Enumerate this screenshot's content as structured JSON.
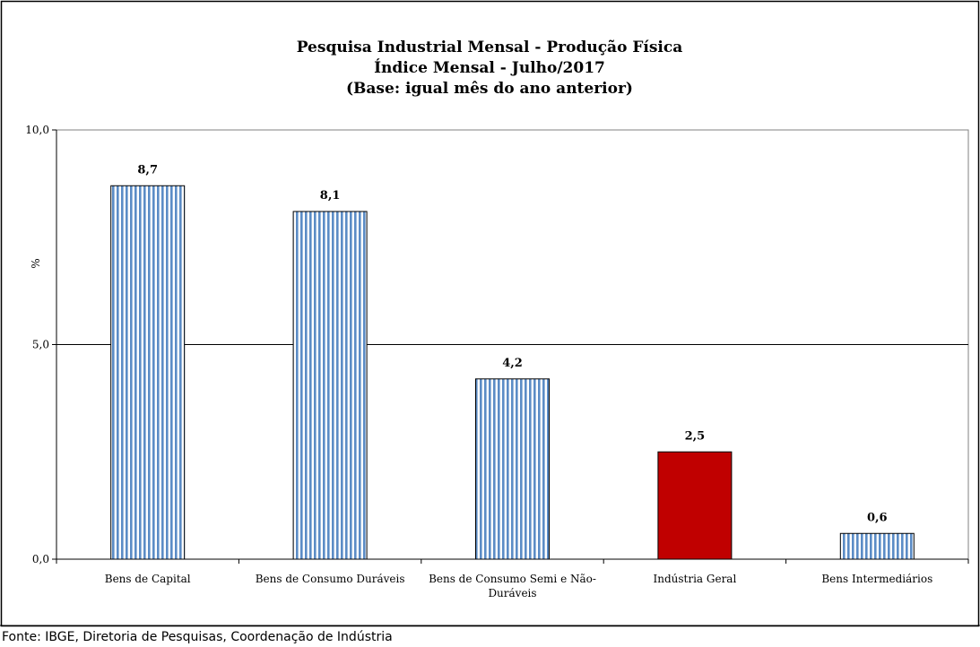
{
  "chart_data": {
    "type": "bar",
    "title": [
      "Pesquisa Industrial Mensal - Produção Física",
      "Índice Mensal - Julho/2017",
      "(Base: igual mês do ano anterior)"
    ],
    "ylabel": "%",
    "ylim": [
      0,
      10
    ],
    "yticks": [
      0,
      5,
      10
    ],
    "ytick_labels": [
      "0,0",
      "5,0",
      "10,0"
    ],
    "grid": true,
    "categories": [
      [
        "Bens de Capital"
      ],
      [
        "Bens de Consumo Duráveis"
      ],
      [
        "Bens de Consumo Semi e Não-",
        "Duráveis"
      ],
      [
        "Indústria Geral"
      ],
      [
        "Bens Intermediários"
      ]
    ],
    "values": [
      8.7,
      8.1,
      4.2,
      2.5,
      0.6
    ],
    "value_labels": [
      "8,7",
      "8,1",
      "4,2",
      "2,5",
      "0,6"
    ],
    "bar_styles": [
      "striped",
      "striped",
      "striped",
      "solid",
      "striped"
    ],
    "colors": {
      "stripe": "#5b8cc6",
      "highlight": "#c00000",
      "outline": "#000000"
    }
  },
  "source": "Fonte: IBGE, Diretoria de Pesquisas, Coordenação de Indústria"
}
